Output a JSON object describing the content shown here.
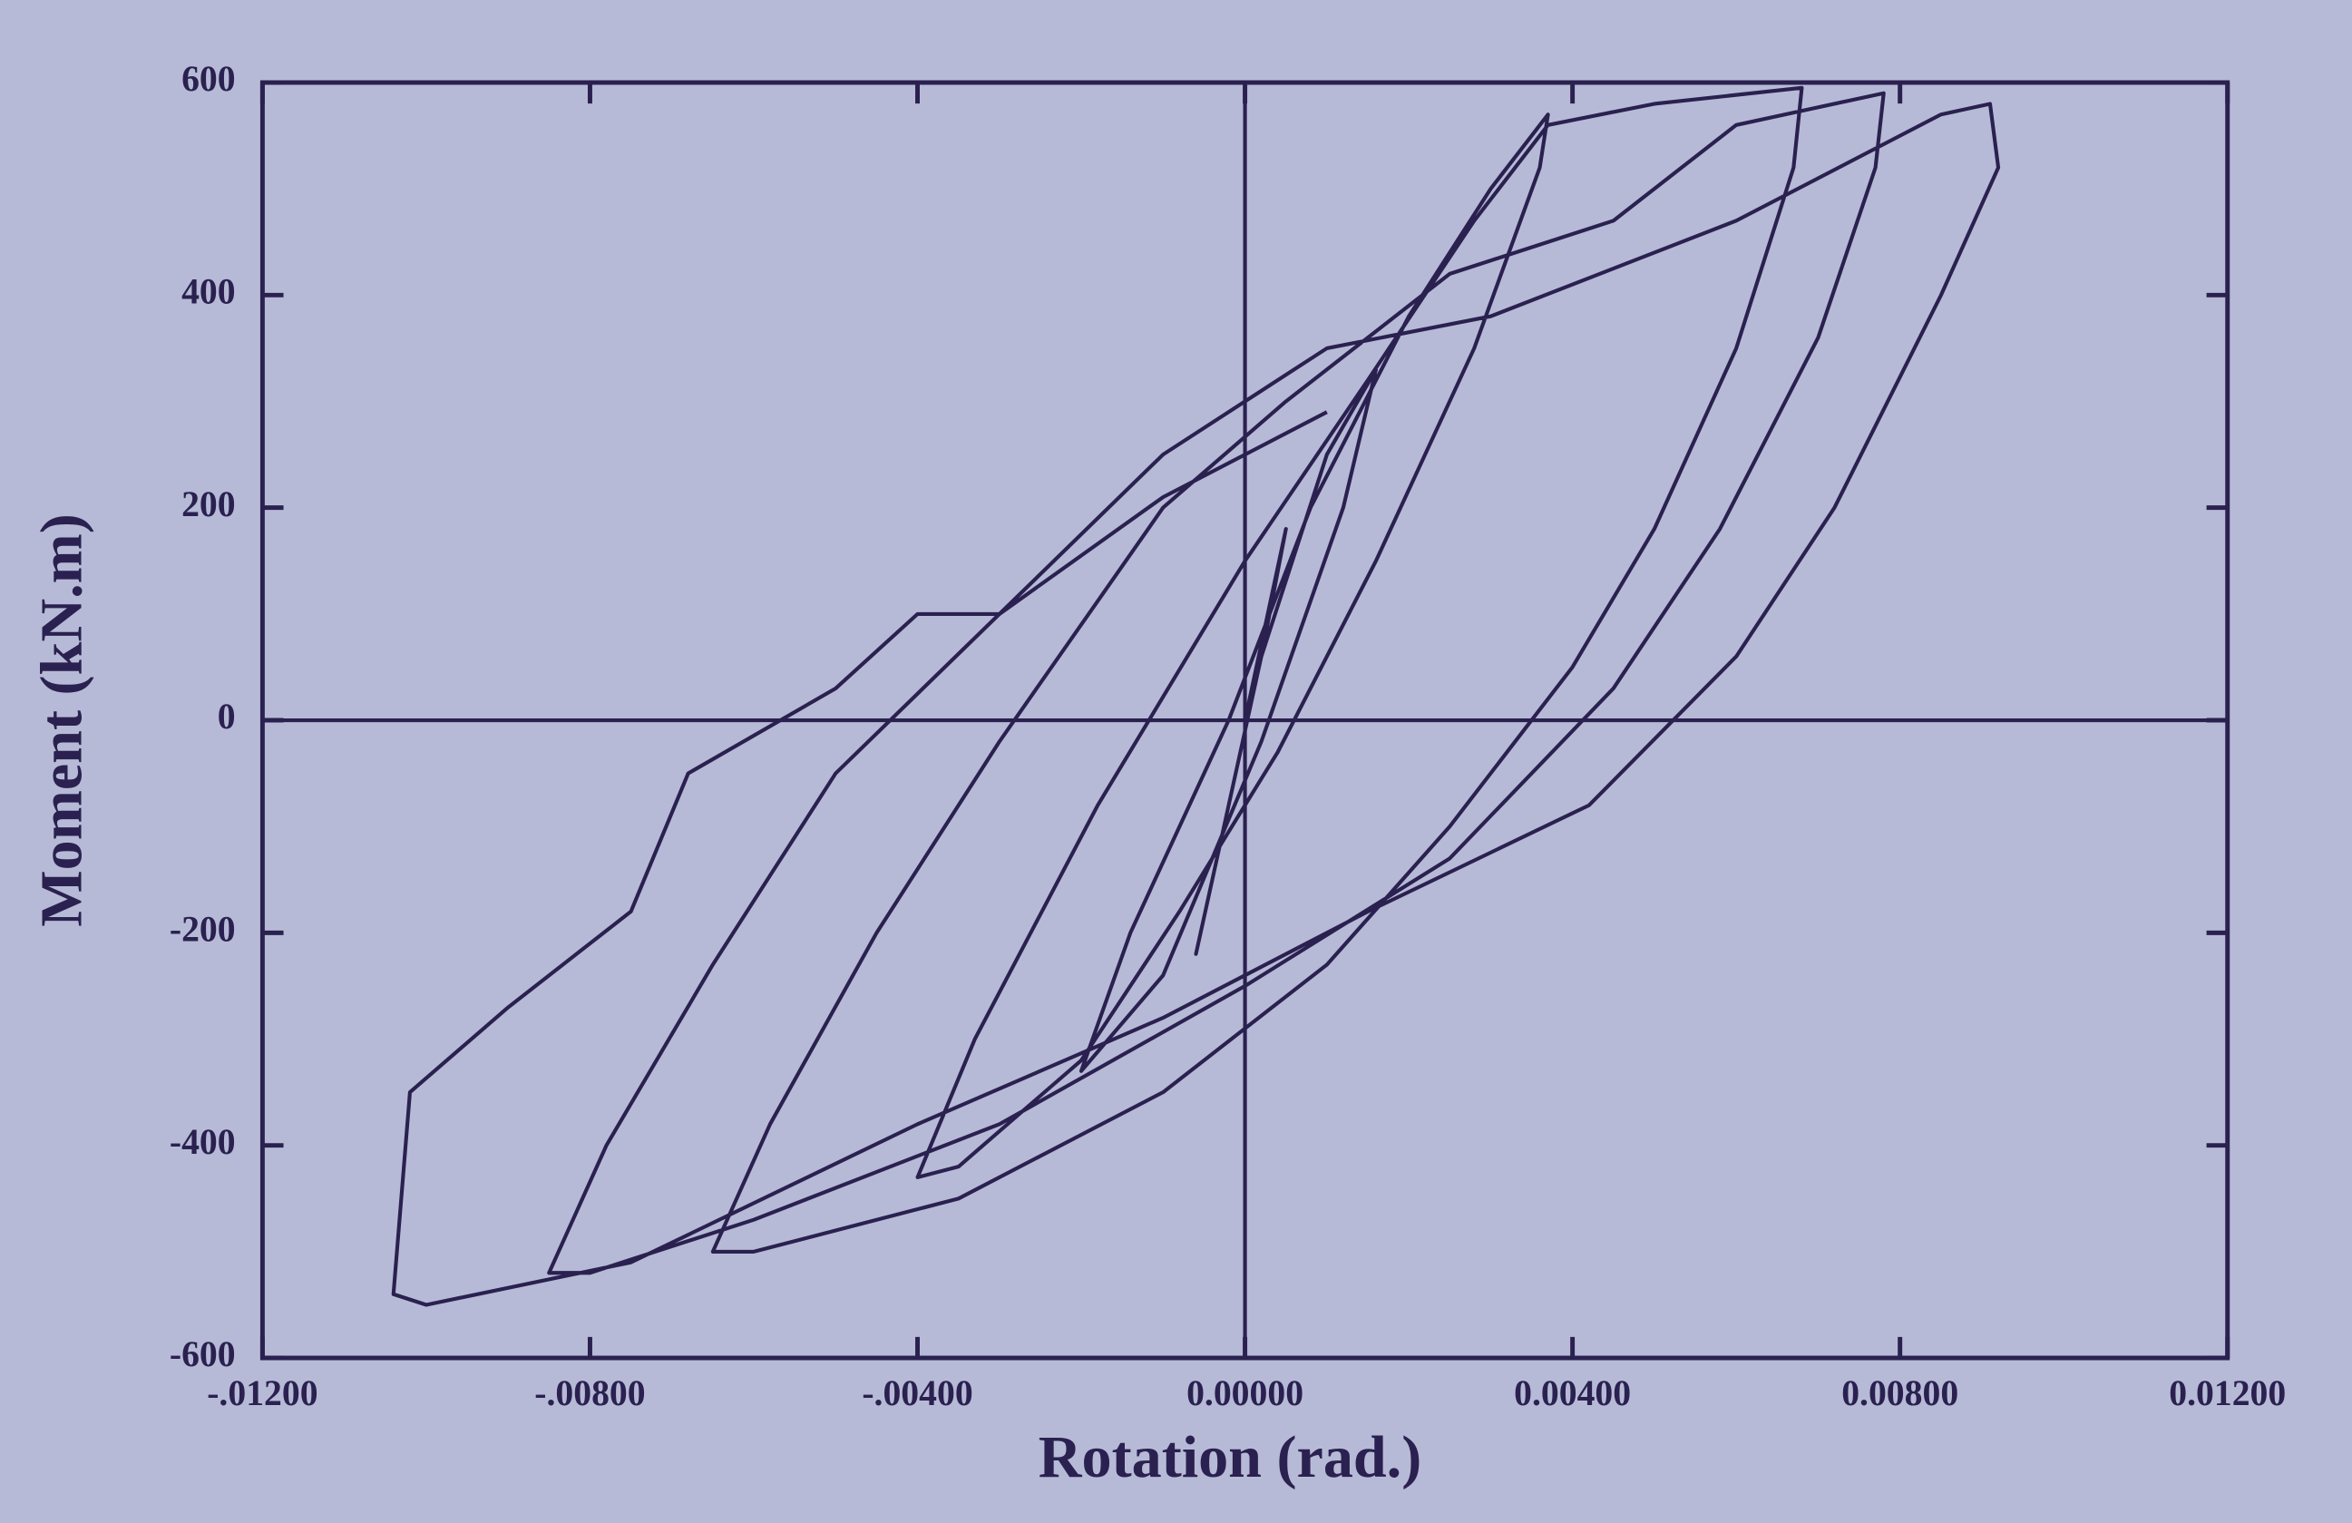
{
  "chart_data": {
    "type": "line",
    "x_label": "Rotation (rad.)",
    "y_label": "Moment (kN.m)",
    "color": "#2a2150",
    "zero_lines": true,
    "xlim": [
      -0.012,
      0.012
    ],
    "ylim": [
      -600,
      600
    ],
    "xticks": [
      {
        "value": -0.012,
        "label": "-.01200"
      },
      {
        "value": -0.008,
        "label": "-.00800"
      },
      {
        "value": -0.004,
        "label": "-.00400"
      },
      {
        "value": 0,
        "label": "0.00000"
      },
      {
        "value": 0.004,
        "label": "0.00400"
      },
      {
        "value": 0.008,
        "label": "0.00800"
      },
      {
        "value": 0.012,
        "label": "0.01200"
      }
    ],
    "yticks": [
      -600,
      -400,
      -200,
      0,
      200,
      400,
      600
    ],
    "x": [
      0,
      0.0005,
      0.0002,
      -0.0004,
      -0.0006,
      -0.0002,
      0.0002,
      0.001,
      0.0016,
      0.0012,
      0.0002,
      -0.001,
      -0.002,
      -0.0014,
      -0.0002,
      0.0008,
      0.002,
      0.003,
      0.0037,
      0.0036,
      0.0028,
      0.0016,
      0.0004,
      -0.0008,
      -0.002,
      -0.0035,
      -0.004,
      -0.0033,
      -0.0018,
      0,
      0.0015,
      0.0028,
      0.0037,
      0.005,
      0.0068,
      0.0067,
      0.006,
      0.005,
      0.004,
      0.0025,
      0.001,
      -0.001,
      -0.0035,
      -0.006,
      -0.0065,
      -0.0058,
      -0.0045,
      -0.003,
      -0.001,
      0.0005,
      0.0025,
      0.0045,
      0.006,
      0.0078,
      0.0077,
      0.007,
      0.0058,
      0.0045,
      0.0025,
      0,
      -0.003,
      -0.006,
      -0.008,
      -0.0085,
      -0.0078,
      -0.0065,
      -0.005,
      -0.003,
      -0.001,
      0.001,
      0.003,
      0.006,
      0.0085,
      0.0091,
      0.0092,
      0.0085,
      0.0072,
      0.006,
      0.0042,
      0.0015,
      -0.001,
      -0.004,
      -0.0075,
      -0.01,
      -0.0104,
      -0.0102,
      -0.009,
      -0.0075,
      -0.0068,
      -0.005,
      -0.004,
      -0.003,
      -0.001,
      0.001
    ],
    "values": [
      0,
      180,
      60,
      -150,
      -220,
      -80,
      60,
      250,
      330,
      200,
      -20,
      -240,
      -330,
      -200,
      0,
      200,
      380,
      500,
      570,
      520,
      350,
      150,
      -30,
      -180,
      -320,
      -420,
      -430,
      -300,
      -80,
      150,
      320,
      470,
      560,
      580,
      595,
      520,
      350,
      180,
      50,
      -100,
      -230,
      -350,
      -450,
      -500,
      -500,
      -380,
      -200,
      -20,
      200,
      300,
      420,
      470,
      560,
      590,
      520,
      360,
      180,
      30,
      -130,
      -250,
      -380,
      -470,
      -520,
      -520,
      -400,
      -230,
      -50,
      100,
      250,
      350,
      380,
      470,
      570,
      580,
      520,
      400,
      200,
      60,
      -80,
      -180,
      -280,
      -380,
      -510,
      -550,
      -540,
      -350,
      -270,
      -180,
      -50,
      30,
      100,
      100,
      210,
      290
    ]
  }
}
